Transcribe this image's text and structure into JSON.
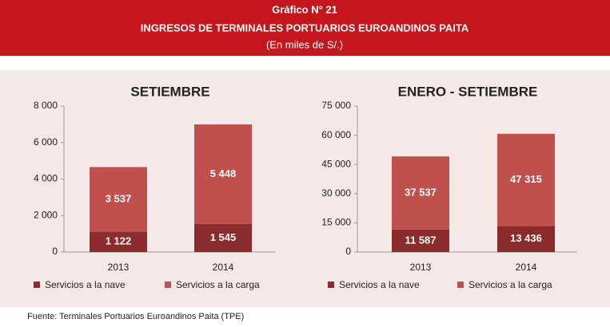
{
  "header": {
    "title": "Gráfico N° 21",
    "subtitle": "INGRESOS DE TERMINALES PORTUARIOS EUROANDINOS PAITA",
    "units": "(En miles de S/.)"
  },
  "source": "Fuente: Terminales Portuarios Euroandinos Paita (TPE)",
  "chart_data": [
    {
      "type": "stacked_bar",
      "title": "SETIEMBRE",
      "categories": [
        "2013",
        "2014"
      ],
      "series": [
        {
          "name": "Servicios a la nave",
          "color": "#8c2b2b",
          "values": [
            1122,
            1545
          ],
          "value_labels": [
            "1 122",
            "1 545"
          ]
        },
        {
          "name": "Servicios a la carga",
          "color": "#c0504d",
          "values": [
            3537,
            5448
          ],
          "value_labels": [
            "3 537",
            "5 448"
          ]
        }
      ],
      "ylim": [
        0,
        8000
      ],
      "yticks": [
        0,
        {
          "value": 2000,
          "label": "2 000"
        },
        {
          "value": 4000,
          "label": "4 000"
        },
        {
          "value": 6000,
          "label": "6 000"
        },
        {
          "value": 8000,
          "label": "8 000"
        }
      ],
      "grid": false,
      "legend": "bottom"
    },
    {
      "type": "stacked_bar",
      "title": "ENERO - SETIEMBRE",
      "categories": [
        "2013",
        "2014"
      ],
      "series": [
        {
          "name": "Servicios a la nave",
          "color": "#8c2b2b",
          "values": [
            11587,
            13436
          ],
          "value_labels": [
            "11 587",
            "13 436"
          ]
        },
        {
          "name": "Servicios a la carga",
          "color": "#c0504d",
          "values": [
            37537,
            47315
          ],
          "value_labels": [
            "37 537",
            "47 315"
          ]
        }
      ],
      "ylim": [
        0,
        75000
      ],
      "yticks": [
        0,
        {
          "value": 15000,
          "label": "15 000"
        },
        {
          "value": 30000,
          "label": "30 000"
        },
        {
          "value": 45000,
          "label": "45 000"
        },
        {
          "value": 60000,
          "label": "60 000"
        },
        {
          "value": 75000,
          "label": "75 000"
        }
      ],
      "grid": false,
      "legend": "bottom"
    }
  ]
}
